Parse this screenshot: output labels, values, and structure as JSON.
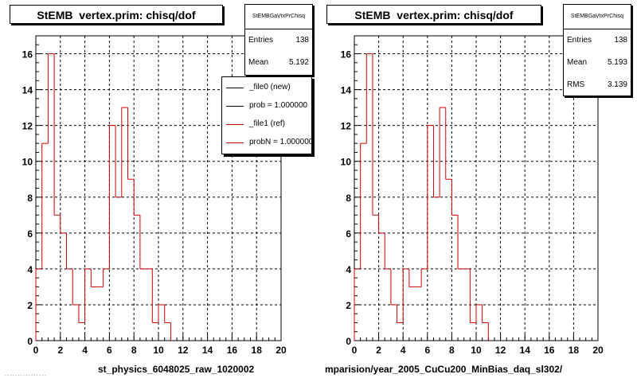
{
  "chart_data": [
    {
      "type": "bar",
      "title": "StEMB  vertex.prim: chisq/dof",
      "xlabel": "st_physics_6048025_raw_1020002",
      "ylabel": "",
      "xlim": [
        0,
        20
      ],
      "ylim": [
        0,
        17
      ],
      "x_ticks": [
        "0",
        "2",
        "4",
        "6",
        "8",
        "10",
        "12",
        "14",
        "16",
        "18",
        "20"
      ],
      "y_ticks": [
        "0",
        "2",
        "4",
        "6",
        "8",
        "10",
        "12",
        "14",
        "16"
      ],
      "grid": true,
      "bin_width": 0.5,
      "series": [
        {
          "name": "_file1 (ref)",
          "color": "#cc0000",
          "values": [
            4,
            11,
            16,
            7,
            6,
            4,
            2,
            1,
            4,
            3,
            3,
            4,
            12,
            8,
            13,
            9,
            7,
            4,
            4,
            1,
            2,
            1,
            0,
            0,
            0,
            0,
            0,
            0,
            0,
            0,
            0,
            0,
            0,
            0,
            0,
            0,
            0,
            0,
            0,
            0
          ]
        }
      ],
      "stats": {
        "title": "StEMBGaVtxPrChisq",
        "entries_label": "Entries",
        "entries": "138",
        "mean_label": "Mean",
        "mean": "5.192"
      },
      "legend": {
        "position": "top-right",
        "entries": [
          {
            "label": "_file0 (new)",
            "color": "#000000"
          },
          {
            "label": "prob = 1.000000",
            "color": "#000000"
          },
          {
            "label": "_file1 (ref)",
            "color": "#cc0000"
          },
          {
            "label": "probN = 1.000000",
            "color": "#cc0000"
          }
        ]
      }
    },
    {
      "type": "bar",
      "title": "StEMB  vertex.prim: chisq/dof",
      "xlabel": "mparision/year_2005_CuCu200_MinBias_daq_sl302/",
      "ylabel": "",
      "xlim": [
        0,
        20
      ],
      "ylim": [
        0,
        17
      ],
      "x_ticks": [
        "0",
        "2",
        "4",
        "6",
        "8",
        "10",
        "12",
        "14",
        "16",
        "18",
        "20"
      ],
      "y_ticks": [
        "0",
        "2",
        "4",
        "6",
        "8",
        "10",
        "12",
        "14",
        "16"
      ],
      "grid": true,
      "bin_width": 0.5,
      "series": [
        {
          "color": "#cc0000",
          "values": [
            4,
            11,
            16,
            7,
            6,
            4,
            2,
            1,
            4,
            3,
            3,
            4,
            12,
            8,
            13,
            9,
            7,
            4,
            4,
            1,
            2,
            1,
            0,
            0,
            0,
            0,
            0,
            0,
            0,
            0,
            0,
            0,
            0,
            0,
            0,
            0,
            0,
            0,
            0,
            0
          ]
        }
      ],
      "stats": {
        "title": "StEMBGaVtxPrChisq",
        "entries_label": "Entries",
        "entries": "138",
        "mean_label": "Mean",
        "mean": "5.193",
        "rms_label": "RMS",
        "rms": "3.139"
      }
    }
  ]
}
